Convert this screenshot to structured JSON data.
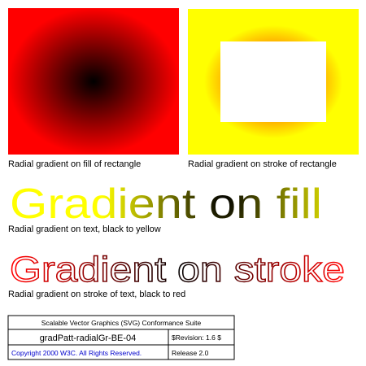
{
  "test": {
    "caption_fill_rect": "Radial gradient on fill of rectangle",
    "caption_stroke_rect": "Radial gradient on stroke of rectangle",
    "text_fill": "Gradient on fill",
    "caption_text_fill": "Radial gradient on text, black to yellow",
    "text_stroke": "Gradient on stroke",
    "caption_text_stroke": "Radial gradient on stroke of text, black to red"
  },
  "footer": {
    "suite_title": "Scalable Vector Graphics (SVG) Conformance Suite",
    "test_name": "gradPatt-radialGr-BE-04",
    "revision": "$Revision: 1.6 $",
    "copyright": "Copyright 2000 W3C. All Rights Reserved.",
    "release": "Release 2.0"
  },
  "colors": {
    "red": "#ff0000",
    "yellow": "#ffff00",
    "orange": "#ff8c00",
    "black": "#000000",
    "white": "#ffffff",
    "link_blue": "#0000cc"
  }
}
